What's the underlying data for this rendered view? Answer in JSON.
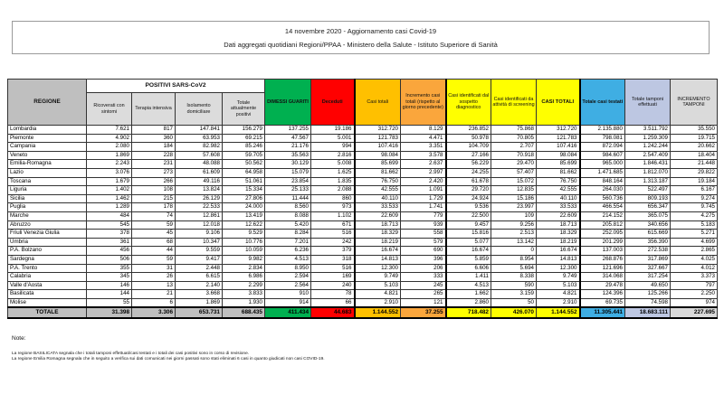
{
  "header": {
    "line1": "14 novembre 2020 - Aggiornamento casi Covid-19",
    "line2": "Dati aggregati quotidiani Regioni/PPAA - Ministero della Salute - Istituto Superiore di Sanità"
  },
  "table": {
    "group_headers": {
      "regione": "REGIONE",
      "positivi": "POSITIVI SARS-CoV2"
    },
    "columns": [
      "Ricoverati con sintomi",
      "Terapia intensiva",
      "Isolamento domiciliare",
      "Totale attualmente positivi",
      "DIMESSI GUARITI",
      "Deceduti",
      "Casi totali",
      "Incremento casi totali (rispetto al giorno precedente)",
      "Casi identificati dal sospetto diagnostico",
      "Casi identificati da attività di screening",
      "CASI TOTALI",
      "Totale casi testati",
      "Totale tamponi effettuati",
      "INCREMENTO TAMPONI"
    ],
    "rows": [
      {
        "regione": "Lombardia",
        "values": [
          "7.621",
          "817",
          "147.841",
          "156.279",
          "137.255",
          "19.186",
          "312.720",
          "8.129",
          "236.852",
          "75.868",
          "312.720",
          "2.135.880",
          "3.511.792",
          "35.550"
        ]
      },
      {
        "regione": "Piemonte",
        "values": [
          "4.902",
          "360",
          "63.953",
          "69.215",
          "47.567",
          "5.001",
          "121.783",
          "4.471",
          "50.978",
          "70.805",
          "121.783",
          "798.081",
          "1.259.309",
          "19.715"
        ]
      },
      {
        "regione": "Campania",
        "values": [
          "2.080",
          "184",
          "82.982",
          "85.246",
          "21.176",
          "994",
          "107.416",
          "3.351",
          "104.709",
          "2.707",
          "107.416",
          "872.094",
          "1.242.244",
          "20.662"
        ]
      },
      {
        "regione": "Veneto",
        "values": [
          "1.869",
          "228",
          "57.608",
          "59.705",
          "35.563",
          "2.816",
          "98.084",
          "3.578",
          "27.166",
          "70.918",
          "98.084",
          "984.607",
          "2.547.409",
          "18.404"
        ]
      },
      {
        "regione": "Emilia-Romagna",
        "values": [
          "2.243",
          "231",
          "48.088",
          "50.562",
          "30.129",
          "5.008",
          "85.699",
          "2.637",
          "56.229",
          "29.470",
          "85.699",
          "965.000",
          "1.846.431",
          "21.448"
        ]
      },
      {
        "regione": "Lazio",
        "values": [
          "3.076",
          "273",
          "61.609",
          "64.958",
          "15.079",
          "1.625",
          "81.662",
          "2.997",
          "24.255",
          "57.407",
          "81.662",
          "1.471.685",
          "1.812.070",
          "29.822"
        ]
      },
      {
        "regione": "Toscana",
        "values": [
          "1.679",
          "266",
          "49.116",
          "51.061",
          "23.854",
          "1.835",
          "76.750",
          "2.420",
          "61.678",
          "15.072",
          "76.750",
          "848.164",
          "1.313.187",
          "19.184"
        ]
      },
      {
        "regione": "Liguria",
        "values": [
          "1.402",
          "108",
          "13.824",
          "15.334",
          "25.133",
          "2.088",
          "42.555",
          "1.091",
          "29.720",
          "12.835",
          "42.555",
          "264.030",
          "522.497",
          "6.167"
        ]
      },
      {
        "regione": "Sicilia",
        "values": [
          "1.462",
          "215",
          "26.129",
          "27.806",
          "11.444",
          "860",
          "40.110",
          "1.729",
          "24.924",
          "15.186",
          "40.110",
          "560.736",
          "809.193",
          "9.274"
        ]
      },
      {
        "regione": "Puglia",
        "values": [
          "1.289",
          "178",
          "22.533",
          "24.000",
          "8.560",
          "973",
          "33.533",
          "1.741",
          "9.536",
          "23.997",
          "33.533",
          "466.554",
          "656.347",
          "9.745"
        ]
      },
      {
        "regione": "Marche",
        "values": [
          "484",
          "74",
          "12.861",
          "13.419",
          "8.088",
          "1.102",
          "22.609",
          "779",
          "22.500",
          "109",
          "22.609",
          "214.152",
          "365.075",
          "4.275"
        ]
      },
      {
        "regione": "Abruzzo",
        "values": [
          "545",
          "59",
          "12.018",
          "12.622",
          "5.420",
          "671",
          "18.713",
          "939",
          "9.457",
          "9.256",
          "18.713",
          "205.812",
          "340.656",
          "5.183"
        ]
      },
      {
        "regione": "Friuli Venezia Giulia",
        "values": [
          "378",
          "45",
          "9.106",
          "9.529",
          "8.284",
          "516",
          "18.329",
          "558",
          "15.816",
          "2.513",
          "18.329",
          "252.095",
          "615.669",
          "5.271"
        ]
      },
      {
        "regione": "Umbria",
        "values": [
          "361",
          "68",
          "10.347",
          "10.776",
          "7.201",
          "242",
          "18.219",
          "579",
          "5.077",
          "13.142",
          "18.219",
          "201.299",
          "356.390",
          "4.699"
        ]
      },
      {
        "regione": "P.A. Bolzano",
        "values": [
          "456",
          "44",
          "9.559",
          "10.059",
          "6.236",
          "379",
          "16.674",
          "690",
          "16.674",
          "0",
          "16.674",
          "137.003",
          "272.538",
          "2.865"
        ]
      },
      {
        "regione": "Sardegna",
        "values": [
          "506",
          "59",
          "9.417",
          "9.982",
          "4.513",
          "318",
          "14.813",
          "396",
          "5.859",
          "8.954",
          "14.813",
          "268.876",
          "317.869",
          "4.025"
        ]
      },
      {
        "regione": "P.A. Trento",
        "values": [
          "355",
          "31",
          "2.448",
          "2.834",
          "8.950",
          "516",
          "12.300",
          "206",
          "6.606",
          "5.694",
          "12.300",
          "121.696",
          "327.667",
          "4.012"
        ]
      },
      {
        "regione": "Calabria",
        "values": [
          "345",
          "26",
          "6.615",
          "6.986",
          "2.594",
          "169",
          "9.749",
          "333",
          "1.411",
          "8.338",
          "9.749",
          "314.068",
          "317.254",
          "3.373"
        ]
      },
      {
        "regione": "Valle d'Aosta",
        "values": [
          "146",
          "13",
          "2.140",
          "2.299",
          "2.564",
          "240",
          "5.103",
          "245",
          "4.513",
          "590",
          "5.103",
          "29.478",
          "49.650",
          "797"
        ]
      },
      {
        "regione": "Basilicata",
        "values": [
          "144",
          "21",
          "3.668",
          "3.833",
          "910",
          "78",
          "4.821",
          "265",
          "1.662",
          "3.159",
          "4.821",
          "124.396",
          "125.266",
          "2.250"
        ]
      },
      {
        "regione": "Molise",
        "values": [
          "55",
          "6",
          "1.869",
          "1.930",
          "914",
          "66",
          "2.910",
          "121",
          "2.860",
          "50",
          "2.910",
          "69.735",
          "74.598",
          "974"
        ]
      }
    ],
    "totale": {
      "label": "TOTALE",
      "values": [
        "31.398",
        "3.306",
        "653.731",
        "688.435",
        "411.434",
        "44.683",
        "1.144.552",
        "37.255",
        "718.482",
        "426.070",
        "1.144.552",
        "11.305.441",
        "18.683.111",
        "227.695"
      ]
    }
  },
  "notes": {
    "title": "Note:",
    "items": [
      "La regione BASILICATA segnala che i totali tamponi effettuati/casi testati e i totali dei casi positivi sono in corso di revisione.",
      "La regione Emilia Romagna segnala che in seguito a verifica sui dati comunicati nei giorni passati sono stati eliminati 6 casi in quanto giudicati non casi COVID-19."
    ]
  },
  "colors": {
    "green": "#00B050",
    "red": "#FF0000",
    "gold": "#FFC000",
    "orange": "#FAA63C",
    "yellow": "#FFFF00",
    "blue": "#3FAEE3",
    "light_blue": "#BDC7E2",
    "gray": "#BFBFBF",
    "light_gray": "#D9D9D9"
  }
}
